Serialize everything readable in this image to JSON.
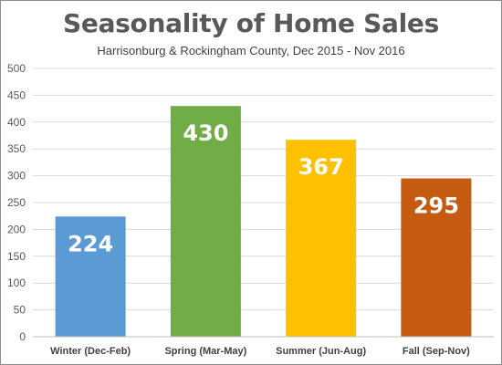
{
  "chart_data": {
    "type": "bar",
    "title": "Seasonality of Home Sales",
    "subtitle": "Harrisonburg & Rockingham County, Dec  2015 - Nov 2016",
    "categories": [
      "Winter (Dec-Feb)",
      "Spring (Mar-May)",
      "Summer (Jun-Aug)",
      "Fall (Sep-Nov)"
    ],
    "values": [
      224,
      430,
      367,
      295
    ],
    "colors": [
      "#5b9bd5",
      "#70ad47",
      "#ffc000",
      "#c55a11"
    ],
    "data_labels": [
      "224",
      "430",
      "367",
      "295"
    ],
    "yticks": [
      "0",
      "50",
      "100",
      "150",
      "200",
      "250",
      "300",
      "350",
      "400",
      "450",
      "500"
    ],
    "ylim": [
      0,
      500
    ],
    "grid": true,
    "legend": "none",
    "gridline_color": "#d9d9d9"
  }
}
